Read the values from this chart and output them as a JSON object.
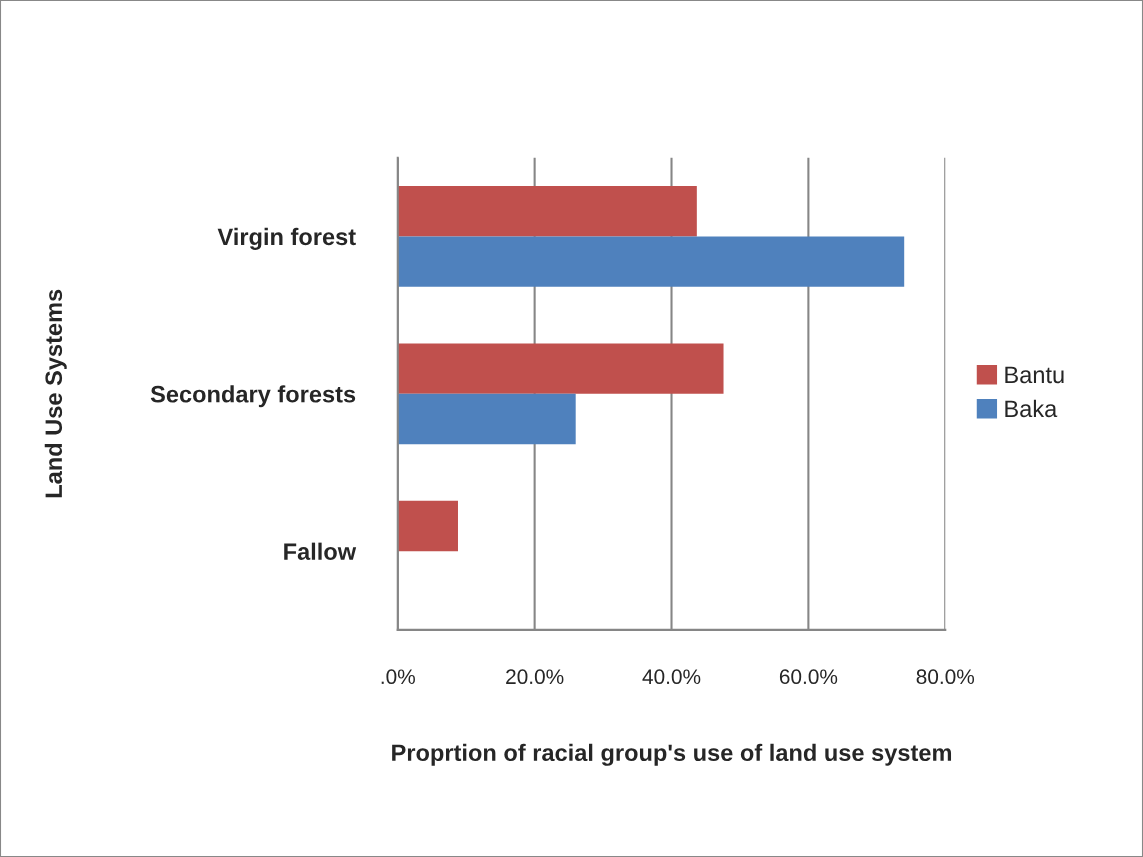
{
  "chart_data": {
    "type": "bar",
    "orientation": "horizontal",
    "categories": [
      "Virgin forest",
      "Secondary forests",
      "Fallow"
    ],
    "series": [
      {
        "name": "Bantu",
        "color": "#c0504d",
        "values": [
          43.7,
          47.6,
          8.8
        ]
      },
      {
        "name": "Baka",
        "color": "#4f81bd",
        "values": [
          74.0,
          26.0,
          0
        ]
      }
    ],
    "xlabel": "Proprtion of racial group's use of land use system",
    "ylabel": "Land Use Systems",
    "xlim": [
      0,
      80
    ],
    "xticks": [
      {
        "value": 0,
        "label": ".0%"
      },
      {
        "value": 20,
        "label": "20.0%"
      },
      {
        "value": 40,
        "label": "40.0%"
      },
      {
        "value": 60,
        "label": "60.0%"
      },
      {
        "value": 80,
        "label": "80.0%"
      }
    ],
    "grid": "x",
    "legend": "right"
  }
}
